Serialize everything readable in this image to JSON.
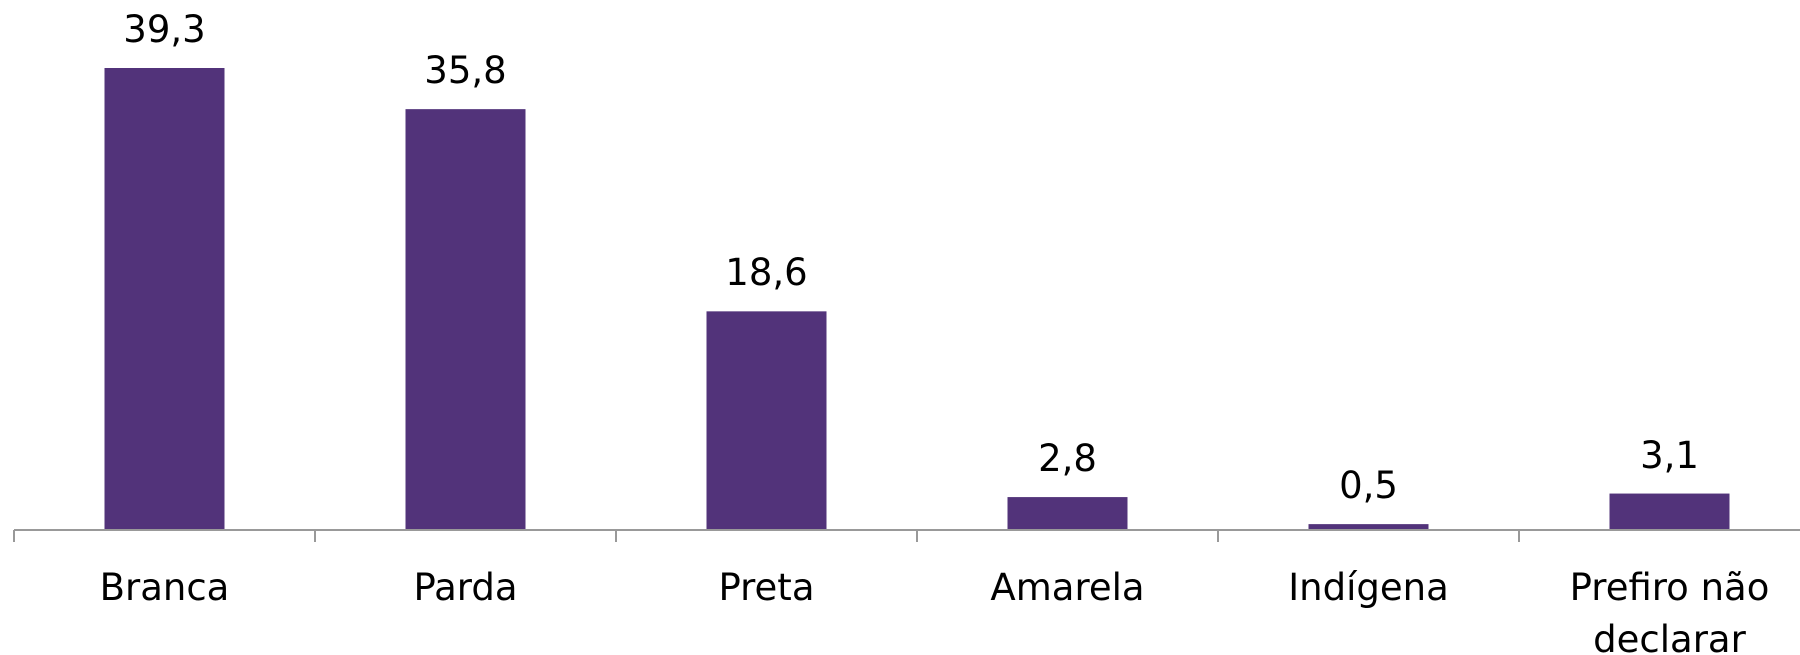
{
  "chart_data": {
    "type": "bar",
    "categories": [
      "Branca",
      "Parda",
      "Preta",
      "Amarela",
      "Indígena",
      "Prefiro não declarar"
    ],
    "values": [
      39.3,
      35.8,
      18.6,
      2.8,
      0.5,
      3.1
    ],
    "value_labels": [
      "39,3",
      "35,8",
      "18,6",
      "2,8",
      "0,5",
      "3,1"
    ],
    "color": "#52337a"
  }
}
